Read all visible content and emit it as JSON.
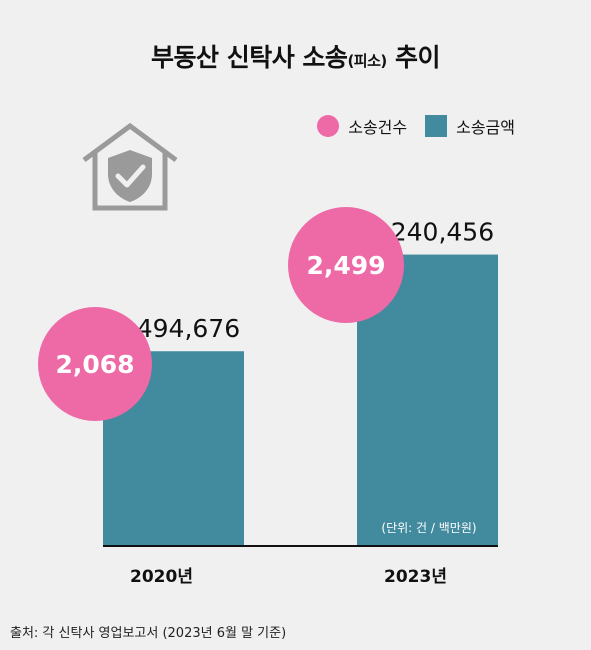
{
  "title": {
    "main": "부동산 신탁사 소송",
    "sub": "(피소)",
    "tail": " 추이"
  },
  "legend": {
    "count_label": "소송건수",
    "amount_label": "소송금액"
  },
  "unit_note": "(단위: 건 / 백만원)",
  "source": "출처: 각 신탁사 영업보고서 (2023년 6월 말 기준)",
  "colors": {
    "pink": "#ee6aa7",
    "teal": "#428a9e",
    "icon": "#9a9a9a"
  },
  "icon": "house-shield-check-icon",
  "chart_data": {
    "type": "bar",
    "categories": [
      "2020년",
      "2023년"
    ],
    "series": [
      {
        "name": "소송금액",
        "values": [
          1494676,
          2240456
        ],
        "labels": [
          "1,494,676",
          "2,240,456"
        ]
      },
      {
        "name": "소송건수",
        "values": [
          2068,
          2499
        ],
        "labels": [
          "2,068",
          "2,499"
        ]
      }
    ],
    "ylim": [
      0,
      2700000
    ]
  }
}
